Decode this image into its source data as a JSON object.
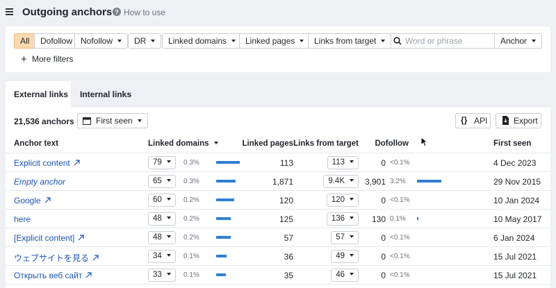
{
  "header": {
    "title": "Outgoing anchors",
    "help": "How to use"
  },
  "filters": {
    "buttons": [
      "All",
      "Dofollow",
      "Nofollow",
      "DR",
      "Linked domains",
      "Linked pages",
      "Links from target"
    ],
    "search_placeholder": "Word or phrase",
    "search_mode": "Anchor",
    "more_filters": "More filters"
  },
  "tabs": [
    "External links",
    "Internal links"
  ],
  "toolbar": {
    "count": "21,536 anchors",
    "sort": "First seen",
    "api": "API",
    "export": "Export"
  },
  "table": {
    "columns": [
      "Anchor text",
      "Linked domains",
      "Linked pages",
      "Links from target",
      "Dofollow",
      "First seen"
    ],
    "rows": [
      {
        "anchor": "Explicit content",
        "external": true,
        "italic": false,
        "linked_domains": 79,
        "linked_domains_share": "0.3%",
        "linked_pages": 113,
        "links_from_target": 113,
        "dofollow": 0,
        "dofollow_share": "<0.1%",
        "first_seen": "4 Dec 2023"
      },
      {
        "anchor": "Empty anchor",
        "external": false,
        "italic": true,
        "linked_domains": 65,
        "linked_domains_share": "0.3%",
        "linked_pages": "1,871",
        "links_from_target": "9.4K",
        "dofollow": {
          "value": 3901,
          "label": "3,901"
        },
        "dofollow_share": "3.2%",
        "first_seen": "29 Nov 2015"
      },
      {
        "anchor": "Google",
        "external": true,
        "italic": false,
        "linked_domains": 60,
        "linked_domains_share": "0.2%",
        "linked_pages": 120,
        "links_from_target": 120,
        "dofollow": 0,
        "dofollow_share": "<0.1%",
        "first_seen": "10 Jan 2024"
      },
      {
        "anchor": "here",
        "external": false,
        "italic": false,
        "linked_domains": 48,
        "linked_domains_share": "0.2%",
        "linked_pages": 125,
        "links_from_target": 136,
        "dofollow": 130,
        "dofollow_share": "0.1%",
        "first_seen": "10 May 2017"
      },
      {
        "anchor": "[Explicit content]",
        "external": true,
        "italic": false,
        "linked_domains": 48,
        "linked_domains_share": "0.2%",
        "linked_pages": 57,
        "links_from_target": 57,
        "dofollow": 0,
        "dofollow_share": "<0.1%",
        "first_seen": "6 Jan 2024"
      },
      {
        "anchor": "ウェブサイトを見る",
        "external": true,
        "italic": false,
        "linked_domains": 34,
        "linked_domains_share": "0.1%",
        "linked_pages": 36,
        "links_from_target": 49,
        "dofollow": 0,
        "dofollow_share": "<0.1%",
        "first_seen": "15 Jul 2021"
      },
      {
        "anchor": "Открыть веб сайт",
        "external": true,
        "italic": false,
        "linked_domains": 33,
        "linked_domains_share": "0.1%",
        "linked_pages": 35,
        "links_from_target": 46,
        "dofollow": 0,
        "dofollow_share": "<0.1%",
        "first_seen": "15 Jul 2021"
      }
    ]
  }
}
